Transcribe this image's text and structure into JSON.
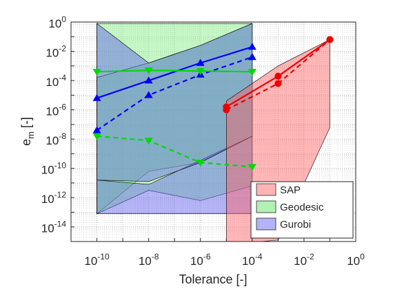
{
  "chart_data": {
    "type": "line",
    "x_scale": "log",
    "y_scale": "log",
    "xlabel": "Tolerance [-]",
    "ylabel_base": "e",
    "ylabel_sub": "m",
    "ylabel_suffix": " [-]",
    "xlim_exp": [
      -11,
      0
    ],
    "ylim_exp": [
      -15,
      0
    ],
    "x_ticks": [
      {
        "base": "10",
        "exp": "-10"
      },
      {
        "base": "10",
        "exp": "-8"
      },
      {
        "base": "10",
        "exp": "-6"
      },
      {
        "base": "10",
        "exp": "-4"
      },
      {
        "base": "10",
        "exp": "-2"
      },
      {
        "base": "10",
        "exp": "0"
      }
    ],
    "y_ticks": [
      {
        "base": "10",
        "exp": "0"
      },
      {
        "base": "10",
        "exp": "-2"
      },
      {
        "base": "10",
        "exp": "-4"
      },
      {
        "base": "10",
        "exp": "-6"
      },
      {
        "base": "10",
        "exp": "-8"
      },
      {
        "base": "10",
        "exp": "-10"
      },
      {
        "base": "10",
        "exp": "-12"
      },
      {
        "base": "10",
        "exp": "-14"
      }
    ],
    "grid": true,
    "legend_position": "bottom-right",
    "legend": [
      {
        "label": "SAP",
        "color": "#ffb3b3"
      },
      {
        "label": "Geodesic",
        "color": "#b3f0b3"
      },
      {
        "label": "Gurobi",
        "color": "#b3b3f5"
      }
    ],
    "bands": [
      {
        "series": "Geodesic",
        "color": "#80ee80",
        "opacity": 0.45,
        "x_exp": [
          -10,
          -8,
          -6,
          -4
        ],
        "upper_exp": [
          -0.1,
          -0.1,
          -0.1,
          -0.1
        ],
        "lower_exp": [
          -13.1,
          -10.2,
          -9.6,
          -7.8
        ]
      },
      {
        "series": "Geodesic-inner",
        "color": "#80ee80",
        "opacity": 0.45,
        "x_exp": [
          -10,
          -8,
          -6,
          -4
        ],
        "upper_exp": [
          -3.8,
          -2.8,
          -1.6,
          -0.1
        ],
        "lower_exp": [
          -13.1,
          -11.5,
          -12.2,
          -11.2
        ]
      },
      {
        "series": "Gurobi",
        "color": "#5a5aee",
        "opacity": 0.45,
        "x_exp": [
          -10,
          -8,
          -4
        ],
        "upper_exp": [
          -10.8,
          -11.1,
          -7.8
        ],
        "lower_exp": [
          -13.1,
          -13.1,
          -13.1
        ]
      },
      {
        "series": "Gurobi-main",
        "color": "#5a5aee",
        "opacity": 0.45,
        "x_exp": [
          -10,
          -8,
          -6,
          -4
        ],
        "upper_exp": [
          -0.1,
          -2.8,
          -1.6,
          -0.1
        ],
        "lower_exp": [
          -10.8,
          -10.9,
          -9.6,
          -7.8
        ]
      },
      {
        "series": "SAP",
        "color": "#ff6060",
        "opacity": 0.45,
        "x_exp": [
          -5,
          -3,
          -1
        ],
        "upper_exp": [
          -5.4,
          -3.0,
          -1.2
        ],
        "lower_exp": [
          -15.2,
          -14.9,
          -7.2
        ]
      }
    ],
    "series": [
      {
        "name": "",
        "color": "#0000ff",
        "dash": false,
        "marker": "triangle-up",
        "x_exp": [
          -10,
          -8,
          -6,
          -4
        ],
        "y_exp": [
          -5.2,
          -4.0,
          -2.8,
          -1.7
        ]
      },
      {
        "name": "",
        "color": "#0000ff",
        "dash": true,
        "marker": "triangle-up",
        "x_exp": [
          -10,
          -8,
          -6,
          -4
        ],
        "y_exp": [
          -7.4,
          -5.0,
          -3.6,
          -2.4
        ]
      },
      {
        "name": "",
        "color": "#00d900",
        "dash": false,
        "marker": "triangle-down",
        "x_exp": [
          -10,
          -8,
          -6,
          -4
        ],
        "y_exp": [
          -3.4,
          -3.3,
          -3.35,
          -3.4
        ]
      },
      {
        "name": "",
        "color": "#00d900",
        "dash": true,
        "marker": "triangle-down",
        "x_exp": [
          -10,
          -8,
          -6,
          -4
        ],
        "y_exp": [
          -7.8,
          -8.1,
          -9.6,
          -9.9
        ]
      },
      {
        "name": "",
        "color": "#ee0000",
        "dash": false,
        "marker": "circle",
        "x_exp": [
          -5,
          -3,
          -1
        ],
        "y_exp": [
          -5.8,
          -3.7,
          -1.2
        ]
      },
      {
        "name": "",
        "color": "#ee0000",
        "dash": true,
        "marker": "circle",
        "x_exp": [
          -5,
          -3,
          -1
        ],
        "y_exp": [
          -6.0,
          -4.2,
          -1.2
        ]
      }
    ]
  }
}
